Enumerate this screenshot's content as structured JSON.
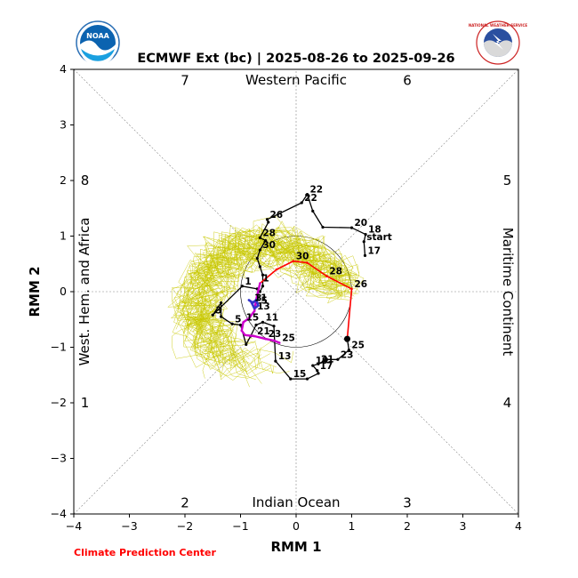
{
  "header": {
    "title": "ECMWF Ext (bc) | 2025-08-26 to 2025-09-26",
    "noaa_logo_text": "NOAA",
    "nws_logo_text": "NATIONAL WEATHER SERVICE"
  },
  "footer": {
    "credit": "Climate Prediction Center"
  },
  "colors": {
    "observed": "#000000",
    "forecast_week1": "#ff0000",
    "forecast_week2": "#cc00cc",
    "forecast_week3": "#3333cc",
    "ensemble": "#c8c800",
    "credit": "#ff0000"
  },
  "chart_data": {
    "type": "line",
    "xlabel": "RMM 1",
    "ylabel": "RMM 2",
    "xlim": [
      -4,
      4
    ],
    "ylim": [
      -4,
      4
    ],
    "xticks": [
      "−4",
      "−3",
      "−2",
      "−1",
      "0",
      "1",
      "2",
      "3",
      "4"
    ],
    "yticks": [
      "−4",
      "−3",
      "−2",
      "−1",
      "0",
      "1",
      "2",
      "3",
      "4"
    ],
    "regions": {
      "top": "Western Pacific",
      "bottom": "Indian Ocean",
      "left": "West. Hem. and Africa",
      "right": "Maritime Continent"
    },
    "phases": [
      {
        "label": "1",
        "x": -3.8,
        "y": -2.0
      },
      {
        "label": "2",
        "x": -2.0,
        "y": -3.8
      },
      {
        "label": "3",
        "x": 2.0,
        "y": -3.8
      },
      {
        "label": "4",
        "x": 3.8,
        "y": -2.0
      },
      {
        "label": "5",
        "x": 3.8,
        "y": 2.0
      },
      {
        "label": "6",
        "x": 2.0,
        "y": 3.8
      },
      {
        "label": "7",
        "x": -2.0,
        "y": 3.8
      },
      {
        "label": "8",
        "x": -3.8,
        "y": 2.0
      }
    ],
    "unit_circle_radius": 1,
    "series": [
      {
        "key": "observed",
        "x": [
          1.24,
          1.22,
          1.25,
          1.0,
          0.48,
          0.3,
          0.2,
          0.1,
          -0.52,
          -0.5,
          -0.65,
          -0.55,
          -0.65,
          -0.7,
          -0.65,
          -0.6,
          -0.6,
          -0.65,
          -0.7,
          -0.97,
          -1.5,
          -1.35,
          -1.35,
          -1.15,
          -1.0,
          -0.9,
          -0.82,
          -0.72,
          -0.6,
          -0.4,
          -0.37,
          -0.1,
          0.2,
          0.4,
          0.38,
          0.3,
          0.4,
          0.55,
          0.75,
          0.95,
          0.92
        ],
        "y": [
          0.65,
          0.9,
          1.03,
          1.15,
          1.16,
          1.45,
          1.75,
          1.6,
          1.3,
          1.25,
          0.97,
          0.92,
          0.75,
          0.6,
          0.45,
          0.3,
          0.1,
          0.0,
          0.05,
          0.1,
          -0.42,
          -0.2,
          -0.45,
          -0.58,
          -0.6,
          -0.95,
          -0.8,
          -0.6,
          -0.55,
          -0.62,
          -1.25,
          -1.57,
          -1.57,
          -1.47,
          -1.42,
          -1.33,
          -1.3,
          -1.22,
          -1.22,
          -1.05,
          -0.85
        ],
        "labels": [
          {
            "i": 0,
            "text": "17"
          },
          {
            "i": 1,
            "text": "start"
          },
          {
            "i": 2,
            "text": "18"
          },
          {
            "i": 3,
            "text": "20"
          },
          {
            "i": 6,
            "text": "22"
          },
          {
            "i": 7,
            "text": "22"
          },
          {
            "i": 8,
            "text": "26"
          },
          {
            "i": 10,
            "text": "28"
          },
          {
            "i": 12,
            "text": "30"
          },
          {
            "i": 19,
            "text": "1"
          },
          {
            "i": 20,
            "text": "3"
          },
          {
            "i": 23,
            "text": "5"
          },
          {
            "i": 28,
            "text": "11"
          },
          {
            "i": 30,
            "text": "13"
          },
          {
            "i": 31,
            "text": "15"
          },
          {
            "i": 34,
            "text": "17"
          },
          {
            "i": 35,
            "text": "19"
          },
          {
            "i": 36,
            "text": "21"
          },
          {
            "i": 38,
            "text": "23"
          },
          {
            "i": 39,
            "text": "25"
          }
        ]
      },
      {
        "key": "forecast_week1",
        "x": [
          0.92,
          1.0,
          0.55,
          0.2,
          -0.05,
          -0.35,
          -0.65
        ],
        "y": [
          -0.85,
          0.05,
          0.28,
          0.52,
          0.55,
          0.4,
          0.15
        ],
        "labels": [
          {
            "i": 1,
            "text": "26"
          },
          {
            "i": 2,
            "text": "28"
          },
          {
            "i": 4,
            "text": "30"
          },
          {
            "i": 6,
            "text": "1"
          }
        ]
      },
      {
        "key": "forecast_week2",
        "x": [
          -0.65,
          -0.72,
          -0.75,
          -0.85,
          -0.95,
          -0.98,
          -0.92,
          -0.75,
          -0.55,
          -0.4,
          -0.3
        ],
        "y": [
          0.15,
          -0.15,
          -0.35,
          -0.48,
          -0.55,
          -0.7,
          -0.78,
          -0.8,
          -0.85,
          -0.88,
          -0.92
        ],
        "labels": [
          {
            "i": 2,
            "text": "13"
          },
          {
            "i": 4,
            "text": "15"
          },
          {
            "i": 7,
            "text": "21"
          },
          {
            "i": 8,
            "text": "23"
          },
          {
            "i": 10,
            "text": "25"
          }
        ]
      },
      {
        "key": "forecast_week3",
        "x": [
          -0.85,
          -0.78,
          -0.72,
          -0.68,
          -0.75,
          -0.8,
          -0.7
        ],
        "y": [
          -0.15,
          -0.2,
          -0.15,
          -0.25,
          -0.3,
          -0.2,
          -0.15
        ],
        "labels": [
          {
            "i": 1,
            "text": "3"
          },
          {
            "i": 3,
            "text": "5"
          },
          {
            "i": 5,
            "text": "11"
          }
        ]
      }
    ]
  }
}
